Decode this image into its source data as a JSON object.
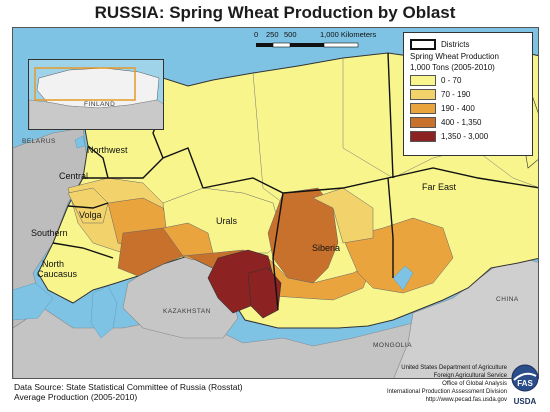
{
  "title": "RUSSIA: Spring Wheat Production by Oblast",
  "scale": {
    "ticks": [
      "0",
      "250",
      "500",
      "1,000 Kilometers"
    ]
  },
  "legend": {
    "districts_label": "Districts",
    "heading": "Spring Wheat Production",
    "units": "1,000 Tons (2005-2010)",
    "classes": [
      {
        "label": "0 - 70",
        "color": "#f7f58c"
      },
      {
        "label": "70 - 190",
        "color": "#f2d36b"
      },
      {
        "label": "190 - 400",
        "color": "#e9a43e"
      },
      {
        "label": "400 - 1,350",
        "color": "#c8712c"
      },
      {
        "label": "1,350 - 3,000",
        "color": "#8c2222"
      }
    ]
  },
  "districts": {
    "northwest": "Northwest",
    "central": "Central",
    "volga": "Volga",
    "southern": "Southern",
    "north_caucasus_1": "North",
    "north_caucasus_2": "Caucasus",
    "urals": "Urals",
    "siberia": "Siberia",
    "far_east": "Far East"
  },
  "countries": {
    "finland": "FINLAND",
    "belarus": "BELARUS",
    "kazakhstan": "KAZAKHSTAN",
    "mongolia": "MONGOLIA",
    "china": "CHINA"
  },
  "source": {
    "line1": "Data Source: State Statistical Committee of Russia (Rosstat)",
    "line2": "Average Production (2005-2010)"
  },
  "credits": {
    "line1": "United States Department of Agriculture",
    "line2": "Foreign Agricultural Service",
    "line3": "Office of Global Analysis",
    "line4": "International Production Assessment Division",
    "line5": "http://www.pecad.fas.usda.gov"
  },
  "logo": {
    "fas": "FAS",
    "usda": "USDA"
  }
}
